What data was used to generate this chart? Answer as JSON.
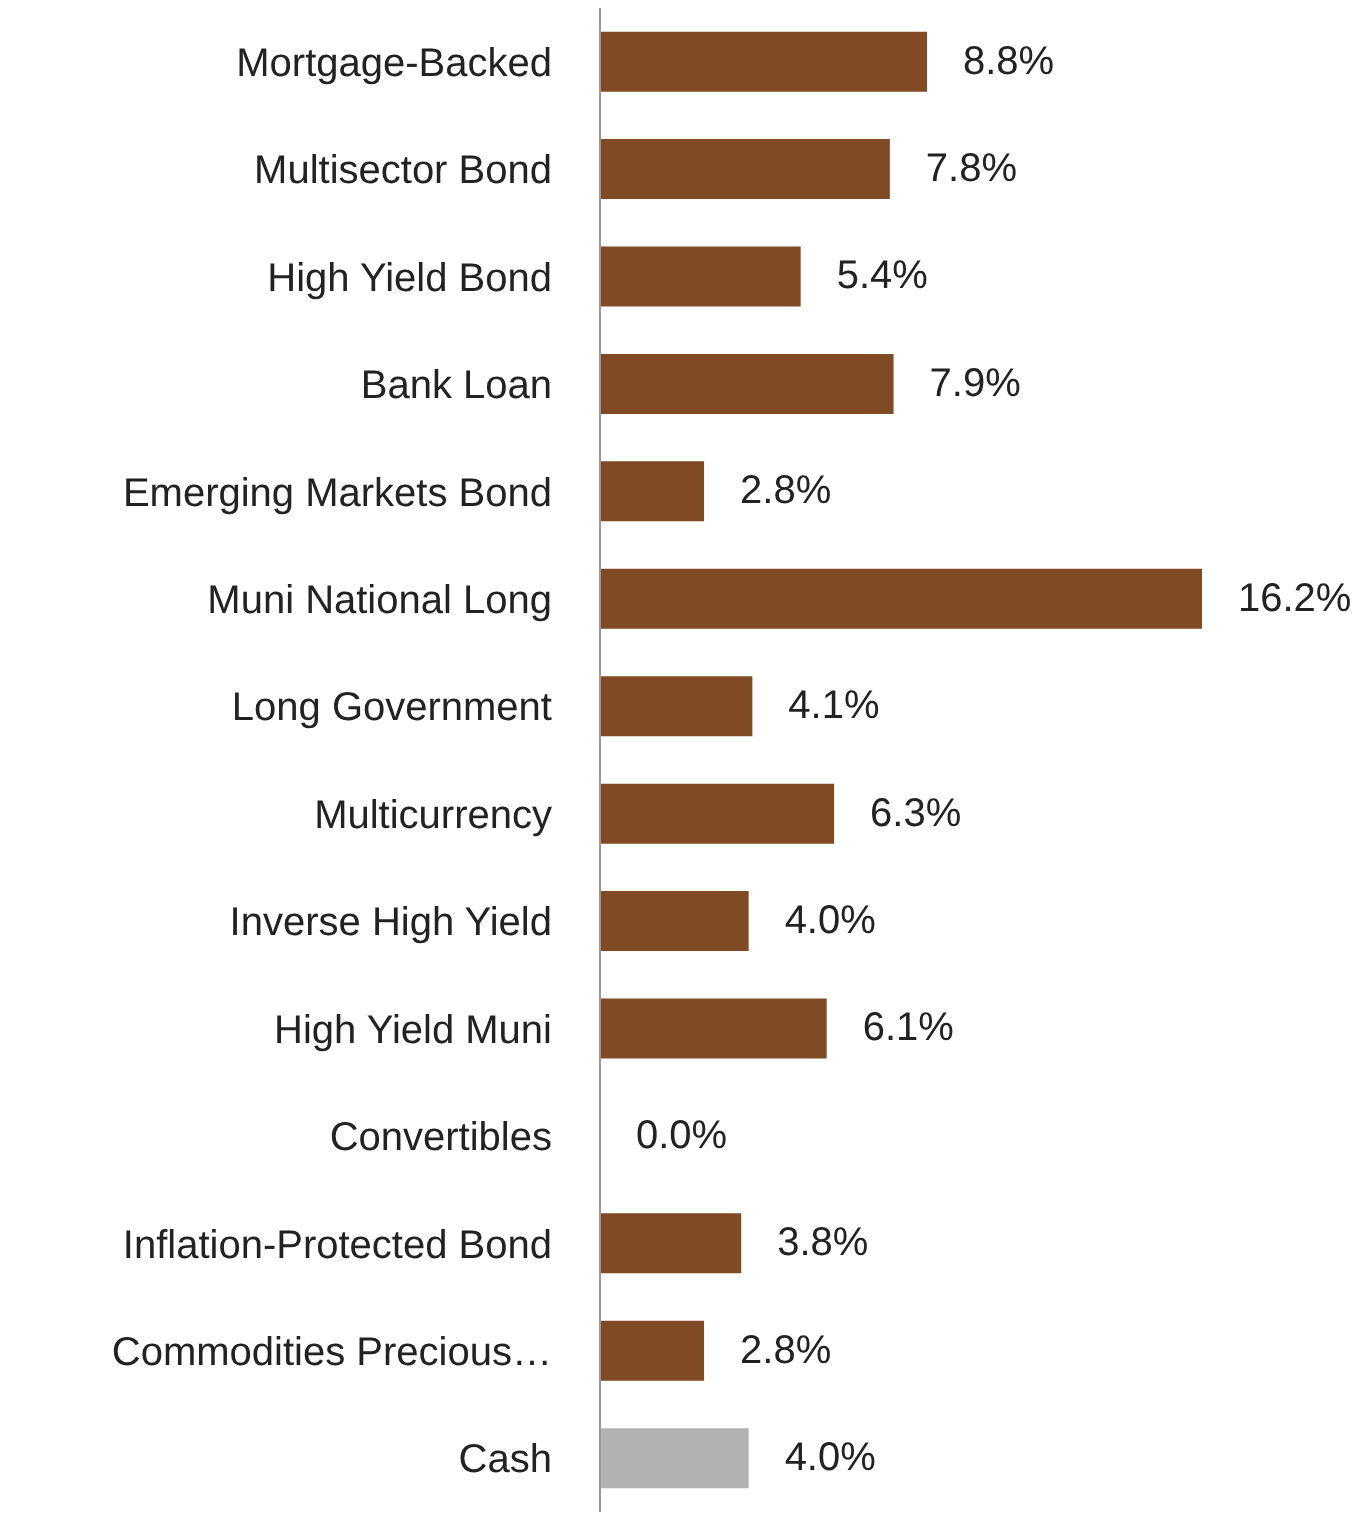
{
  "chart_data": {
    "type": "bar",
    "orientation": "horizontal",
    "categories": [
      "Mortgage-Backed",
      "Multisector Bond",
      "High Yield Bond",
      "Bank Loan",
      "Emerging Markets Bond",
      "Muni National Long",
      "Long Government",
      "Multicurrency",
      "Inverse High Yield",
      "High Yield Muni",
      "Convertibles",
      "Inflation-Protected Bond",
      "Commodities Precious…",
      "Cash"
    ],
    "values": [
      8.8,
      7.8,
      5.4,
      7.9,
      2.8,
      16.2,
      4.1,
      6.3,
      4.0,
      6.1,
      0.0,
      3.8,
      2.8,
      4.0
    ],
    "value_labels": [
      "8.8%",
      "7.8%",
      "5.4%",
      "7.9%",
      "2.8%",
      "16.2%",
      "4.1%",
      "6.3%",
      "4.0%",
      "6.1%",
      "0.0%",
      "3.8%",
      "2.8%",
      "4.0%"
    ],
    "colors": [
      "#7f4a24",
      "#7f4a24",
      "#7f4a24",
      "#7f4a24",
      "#7f4a24",
      "#7f4a24",
      "#7f4a24",
      "#7f4a24",
      "#7f4a24",
      "#7f4a24",
      "#7f4a24",
      "#7f4a24",
      "#7f4a24",
      "#b2b2b2"
    ],
    "grid": false,
    "legend": false
  }
}
